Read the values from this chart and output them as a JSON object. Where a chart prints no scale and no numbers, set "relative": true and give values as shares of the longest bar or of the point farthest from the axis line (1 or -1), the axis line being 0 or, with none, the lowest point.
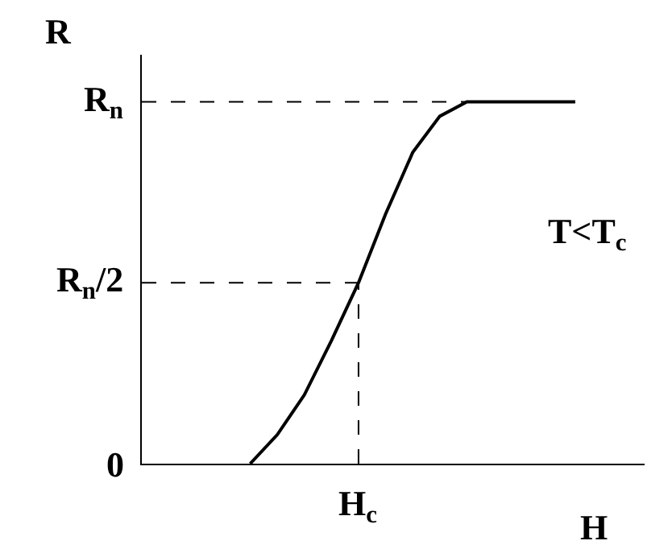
{
  "chart_data": {
    "type": "line",
    "relative": true,
    "xlabel": "H",
    "ylabel": "R",
    "annotations": [
      "T<T$_{c}$",
      "0",
      "H$_{c}$"
    ],
    "categories": [
      null,
      null,
      null,
      null,
      null,
      null,
      null,
      null,
      null,
      null,
      null,
      null,
      null,
      null,
      null,
      null,
      null
    ],
    "series": [
      {
        "color": "#000000",
        "values": [
          null,
          null,
          null,
          null,
          0,
          0.08,
          0.19,
          0.34,
          0.5,
          0.69,
          0.86,
          0.96,
          1,
          1,
          1,
          1,
          1
        ]
      }
    ],
    "ref_lines": [
      {
        "axis": "y",
        "value": 1,
        "label": "R$_{n}$",
        "line_style": "dashed"
      },
      {
        "axis": "y",
        "value": 0.5,
        "label": "R$_{n}$/2",
        "line_style": "dashed"
      }
    ],
    "grid": false,
    "marker": "none",
    "line_style": "solid"
  }
}
